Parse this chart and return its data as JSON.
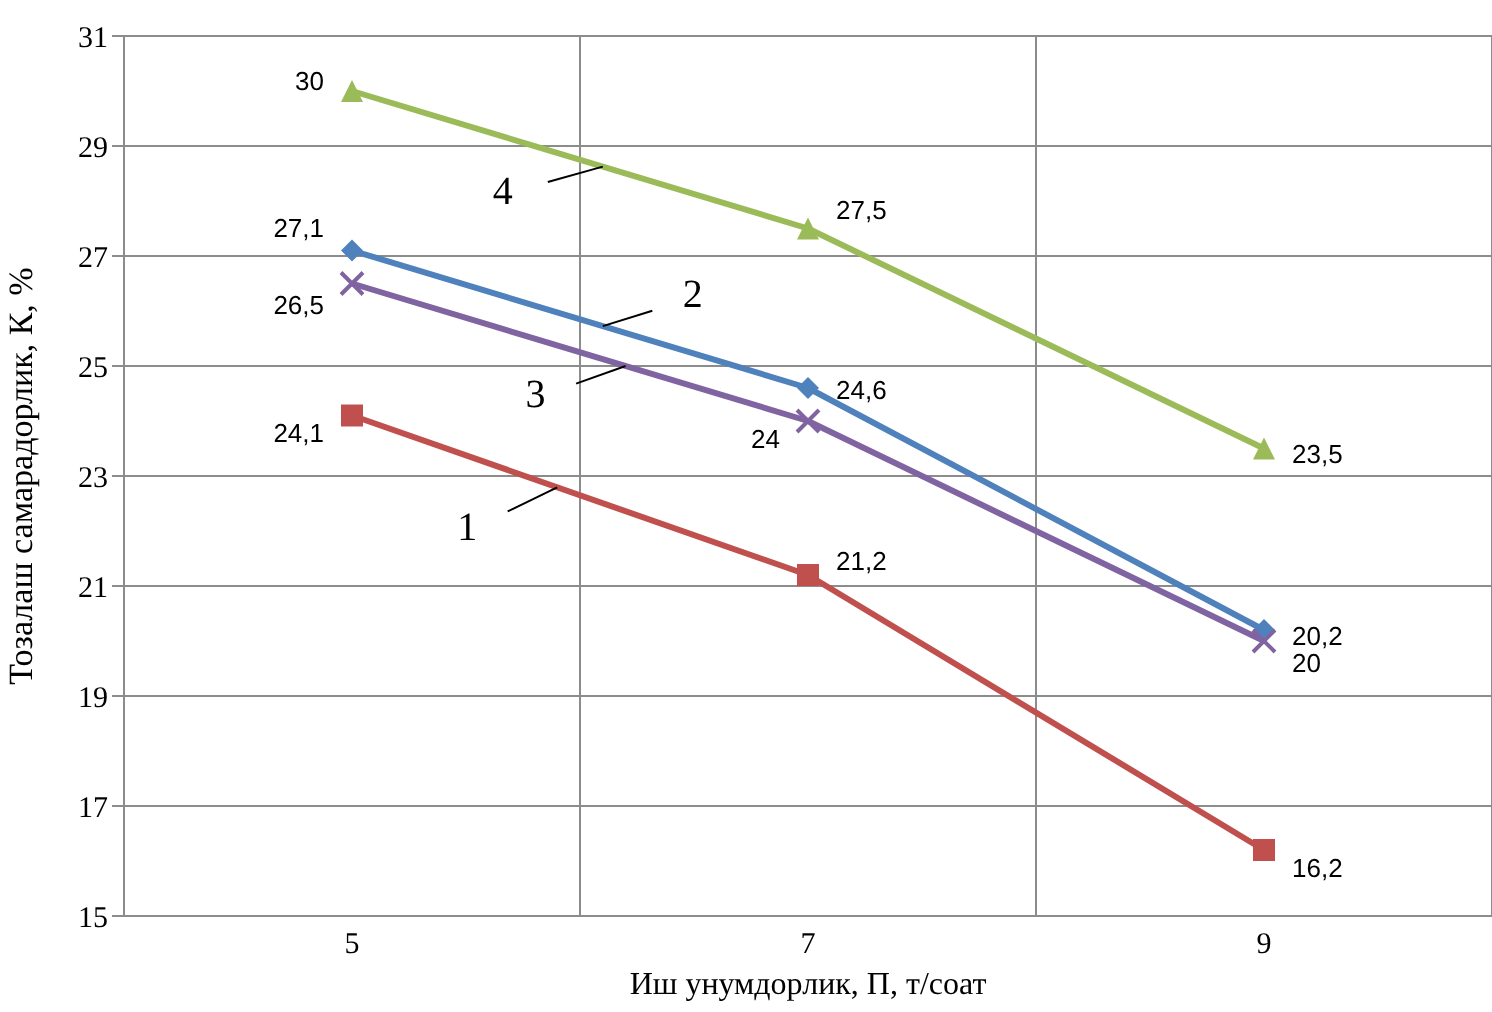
{
  "chart_data": {
    "type": "line",
    "xlabel": "Иш унумдорлик, П, т/соат",
    "ylabel": "Тозалаш самарадорлик, К, %",
    "categories": [
      "5",
      "7",
      "9"
    ],
    "ylim": [
      15,
      31
    ],
    "yticks": [
      15,
      17,
      19,
      21,
      23,
      25,
      27,
      29,
      31
    ],
    "grid": true,
    "legend": false,
    "series": [
      {
        "name": "1",
        "color": "#c0504d",
        "marker": "square",
        "values": [
          24.1,
          21.2,
          16.2
        ],
        "value_labels": [
          "24,1",
          "21,2",
          "16,2"
        ]
      },
      {
        "name": "2",
        "color": "#4f81bd",
        "marker": "diamond",
        "values": [
          27.1,
          24.6,
          20.2
        ],
        "value_labels": [
          "27,1",
          "24,6",
          "20,2"
        ]
      },
      {
        "name": "3",
        "color": "#8064a2",
        "marker": "cross",
        "values": [
          26.5,
          24,
          20
        ],
        "value_labels": [
          "26,5",
          "24",
          "20"
        ]
      },
      {
        "name": "4",
        "color": "#9bbb59",
        "marker": "triangle",
        "values": [
          30,
          27.5,
          23.5
        ],
        "value_labels": [
          "30",
          "27,5",
          "23,5"
        ]
      }
    ]
  }
}
